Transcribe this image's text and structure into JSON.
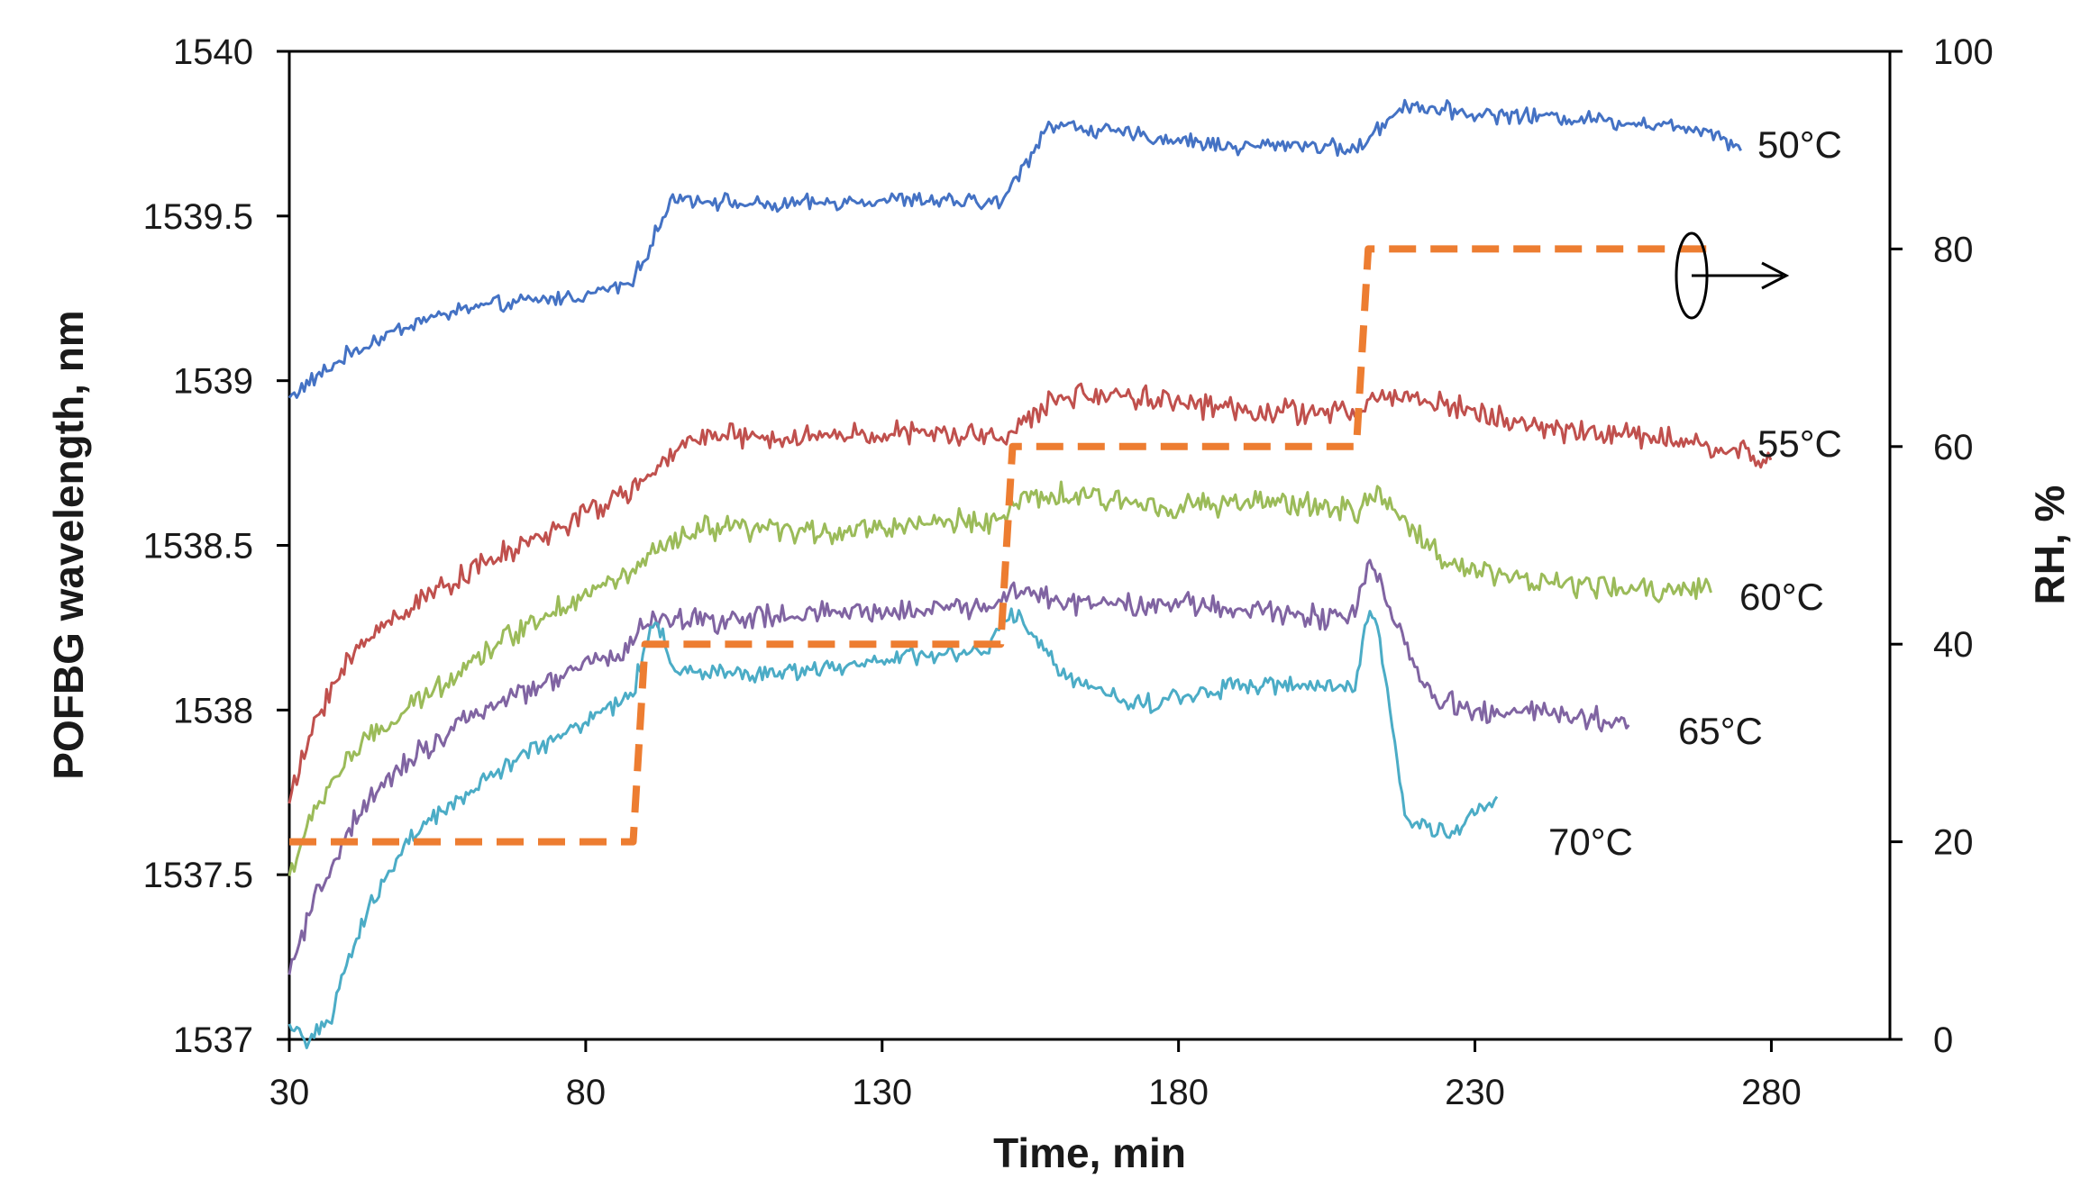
{
  "chart_data": {
    "type": "line",
    "xlabel": "Time, min",
    "ylabel": "POFBG wavelength, nm",
    "y2label": "RH, %",
    "xlim": [
      30,
      300
    ],
    "ylim": [
      1537,
      1540
    ],
    "y2lim": [
      0,
      100
    ],
    "xticks": [
      "30",
      "80",
      "130",
      "180",
      "230",
      "280"
    ],
    "yticks": [
      "1537",
      "1537.5",
      "1538",
      "1538.5",
      "1539",
      "1539.5",
      "1540"
    ],
    "y2ticks": [
      "0",
      "20",
      "40",
      "60",
      "80",
      "100"
    ],
    "grid": false,
    "series": [
      {
        "name": "50°C",
        "axis": "left",
        "color": "#4472C4",
        "x": [
          30,
          40,
          50,
          60,
          70,
          80,
          88,
          90,
          95,
          110,
          130,
          150,
          153,
          158,
          175,
          190,
          200,
          210,
          213,
          218,
          230,
          245,
          260,
          270,
          275
        ],
        "y": [
          1538.95,
          1539.08,
          1539.17,
          1539.22,
          1539.24,
          1539.26,
          1539.3,
          1539.38,
          1539.56,
          1539.53,
          1539.55,
          1539.54,
          1539.62,
          1539.78,
          1539.74,
          1539.71,
          1539.72,
          1539.7,
          1539.75,
          1539.84,
          1539.81,
          1539.8,
          1539.78,
          1539.76,
          1539.7
        ],
        "noise": 0.03
      },
      {
        "name": "55°C",
        "axis": "left",
        "color": "#C0504D",
        "x": [
          30,
          35,
          40,
          45,
          55,
          65,
          75,
          85,
          92,
          98,
          110,
          130,
          150,
          153,
          160,
          170,
          190,
          210,
          213,
          220,
          240,
          260,
          270,
          275,
          280
        ],
        "y": [
          1537.72,
          1538.0,
          1538.15,
          1538.25,
          1538.37,
          1538.46,
          1538.55,
          1538.64,
          1538.72,
          1538.84,
          1538.82,
          1538.84,
          1538.83,
          1538.86,
          1538.95,
          1538.96,
          1538.91,
          1538.9,
          1538.95,
          1538.95,
          1538.86,
          1538.83,
          1538.8,
          1538.78,
          1538.74
        ],
        "noise": 0.045
      },
      {
        "name": "60°C",
        "axis": "left",
        "color": "#9BBB59",
        "x": [
          30,
          35,
          40,
          50,
          60,
          70,
          80,
          88,
          92,
          100,
          120,
          140,
          150,
          153,
          160,
          180,
          200,
          210,
          213,
          218,
          225,
          240,
          260,
          270
        ],
        "y": [
          1537.5,
          1537.72,
          1537.86,
          1538.0,
          1538.14,
          1538.26,
          1538.35,
          1538.42,
          1538.48,
          1538.55,
          1538.54,
          1538.57,
          1538.58,
          1538.63,
          1538.65,
          1538.62,
          1538.63,
          1538.6,
          1538.66,
          1538.58,
          1538.45,
          1538.39,
          1538.36,
          1538.38
        ],
        "noise": 0.045
      },
      {
        "name": "65°C",
        "axis": "left",
        "color": "#8064A2",
        "x": [
          30,
          35,
          40,
          45,
          50,
          60,
          70,
          80,
          88,
          90,
          95,
          110,
          130,
          150,
          152,
          160,
          180,
          200,
          210,
          212,
          214,
          218,
          222,
          230,
          240,
          250,
          256
        ],
        "y": [
          1537.2,
          1537.45,
          1537.63,
          1537.75,
          1537.85,
          1537.97,
          1538.06,
          1538.13,
          1538.2,
          1538.28,
          1538.27,
          1538.28,
          1538.3,
          1538.32,
          1538.37,
          1538.33,
          1538.32,
          1538.29,
          1538.28,
          1538.45,
          1538.4,
          1538.2,
          1538.05,
          1537.99,
          1538.0,
          1537.97,
          1537.96
        ],
        "noise": 0.045
      },
      {
        "name": "70°C",
        "axis": "left",
        "color": "#4BACC6",
        "x": [
          30,
          33,
          37,
          40,
          45,
          50,
          60,
          70,
          80,
          88,
          90,
          92,
          95,
          110,
          130,
          148,
          150,
          153,
          160,
          170,
          175,
          190,
          200,
          210,
          212,
          214,
          216,
          218,
          220,
          225,
          230,
          234
        ],
        "y": [
          1537.05,
          1537.0,
          1537.05,
          1537.25,
          1537.45,
          1537.6,
          1537.75,
          1537.87,
          1537.97,
          1538.05,
          1538.2,
          1538.27,
          1538.12,
          1538.11,
          1538.15,
          1538.18,
          1538.27,
          1538.28,
          1538.12,
          1538.03,
          1538.02,
          1538.08,
          1538.07,
          1538.07,
          1538.3,
          1538.22,
          1537.95,
          1537.72,
          1537.65,
          1537.63,
          1537.68,
          1537.72
        ],
        "noise": 0.035
      }
    ],
    "rh_series": {
      "name": "RH",
      "axis": "right",
      "color": "#ED7D31",
      "style": "dashed",
      "x": [
        30,
        88,
        90,
        150,
        152,
        210,
        212,
        270
      ],
      "y": [
        20,
        20,
        40,
        40,
        60,
        60,
        80,
        80
      ]
    },
    "series_labels": [
      "50°C",
      "55°C",
      "60°C",
      "65°C",
      "70°C"
    ],
    "annotations": [
      "ellipse with arrow pointing to right axis (RH)"
    ]
  }
}
